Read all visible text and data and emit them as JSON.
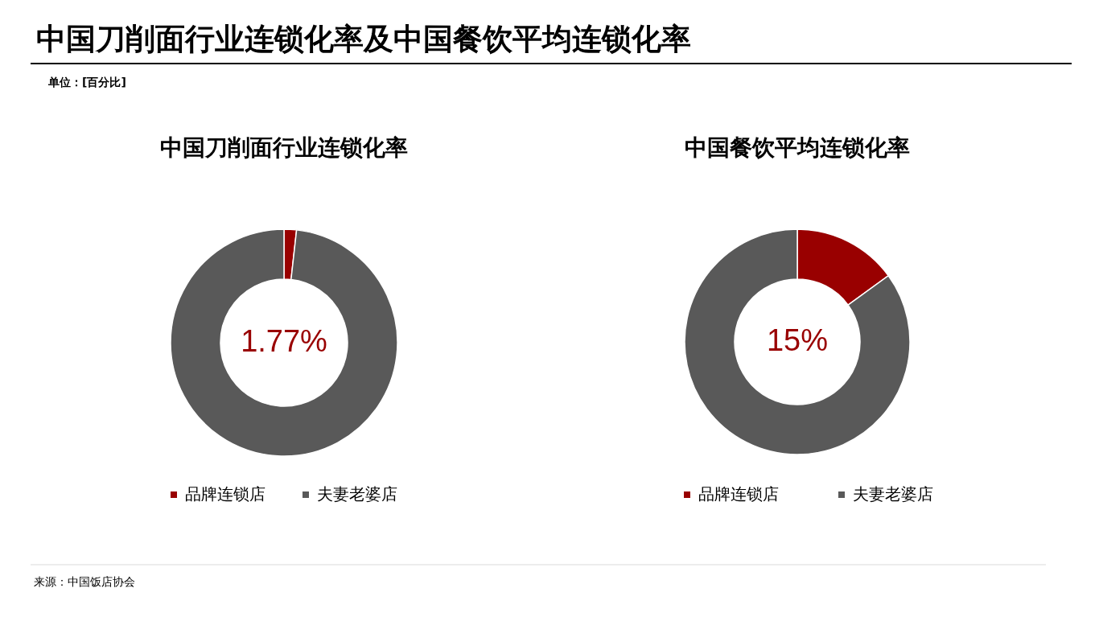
{
  "chart_data": [
    {
      "type": "other",
      "title": "中国刀削面行业连锁化率及中国餐饮平均连锁化率",
      "subtitle": "单位：[百分比]",
      "annotations": [
        "来源：中国饭店协会"
      ]
    },
    {
      "type": "donut",
      "title": "中国刀削面行业连锁化率",
      "categories": [
        "品牌连锁店",
        "夫妻老婆店"
      ],
      "values": [
        1.77,
        98.23
      ],
      "colors": [
        "#990000",
        "#595959"
      ],
      "value_labels": [
        "1.77%",
        null
      ],
      "legend": "bottom"
    },
    {
      "type": "donut",
      "title": "中国餐饮平均连锁化率",
      "categories": [
        "品牌连锁店",
        "夫妻老婆店"
      ],
      "values": [
        15,
        85
      ],
      "colors": [
        "#990000",
        "#595959"
      ],
      "value_labels": [
        "15%",
        null
      ],
      "legend": "bottom"
    }
  ]
}
